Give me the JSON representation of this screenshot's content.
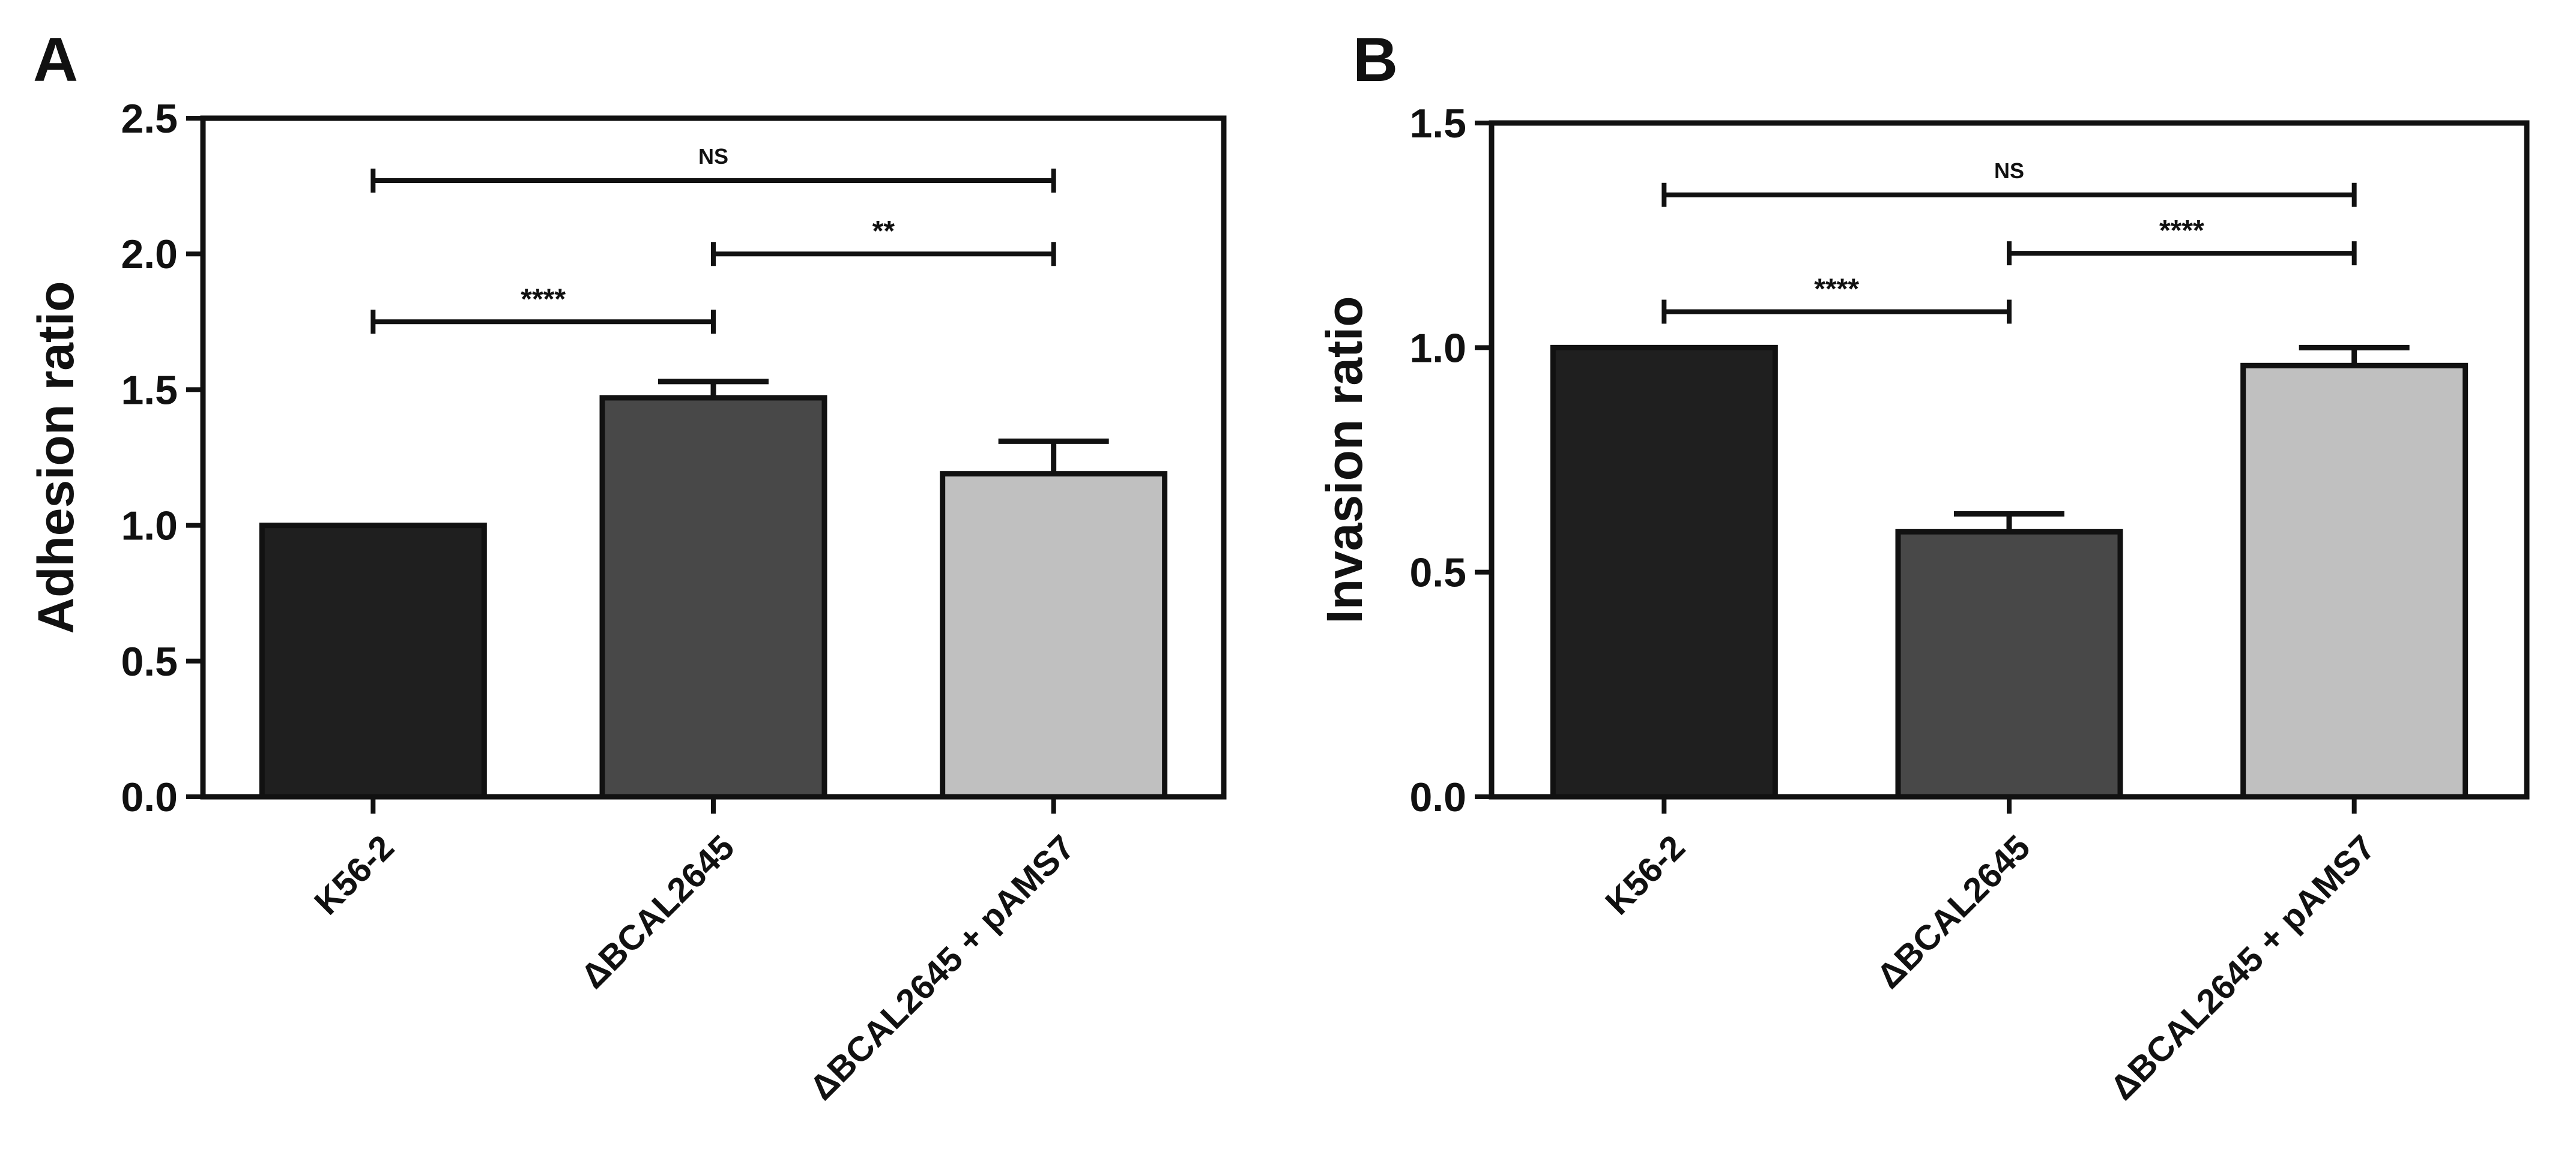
{
  "chart_data": [
    {
      "type": "bar",
      "panel_label": "A",
      "ylabel": "Adhesion ratio",
      "xlabel": "",
      "ylim": [
        0,
        2.5
      ],
      "yticks": [
        "0.0",
        "0.5",
        "1.0",
        "1.5",
        "2.0",
        "2.5"
      ],
      "categories": [
        "K56-2",
        "ΔBCAL2645",
        "ΔBCAL2645 + pAMS7"
      ],
      "values": [
        1.0,
        1.47,
        1.19
      ],
      "errors": [
        0.0,
        0.06,
        0.12
      ],
      "colors": [
        "#1f1f1f",
        "#484848",
        "#c0c0c0"
      ],
      "significance": [
        {
          "from": 0,
          "to": 2,
          "y": 2.27,
          "label": "NS"
        },
        {
          "from": 1,
          "to": 2,
          "y": 2.0,
          "label": "**"
        },
        {
          "from": 0,
          "to": 1,
          "y": 1.75,
          "label": "****"
        }
      ]
    },
    {
      "type": "bar",
      "panel_label": "B",
      "ylabel": "Invasion ratio",
      "xlabel": "",
      "ylim": [
        0,
        1.5
      ],
      "yticks": [
        "0.0",
        "0.5",
        "1.0",
        "1.5"
      ],
      "categories": [
        "K56-2",
        "ΔBCAL2645",
        "ΔBCAL2645 + pAMS7"
      ],
      "values": [
        1.0,
        0.59,
        0.96
      ],
      "errors": [
        0.0,
        0.04,
        0.04
      ],
      "colors": [
        "#1f1f1f",
        "#484848",
        "#c0c0c0"
      ],
      "significance": [
        {
          "from": 0,
          "to": 2,
          "y": 1.34,
          "label": "NS"
        },
        {
          "from": 1,
          "to": 2,
          "y": 1.21,
          "label": "****"
        },
        {
          "from": 0,
          "to": 1,
          "y": 1.08,
          "label": "****"
        }
      ]
    }
  ]
}
